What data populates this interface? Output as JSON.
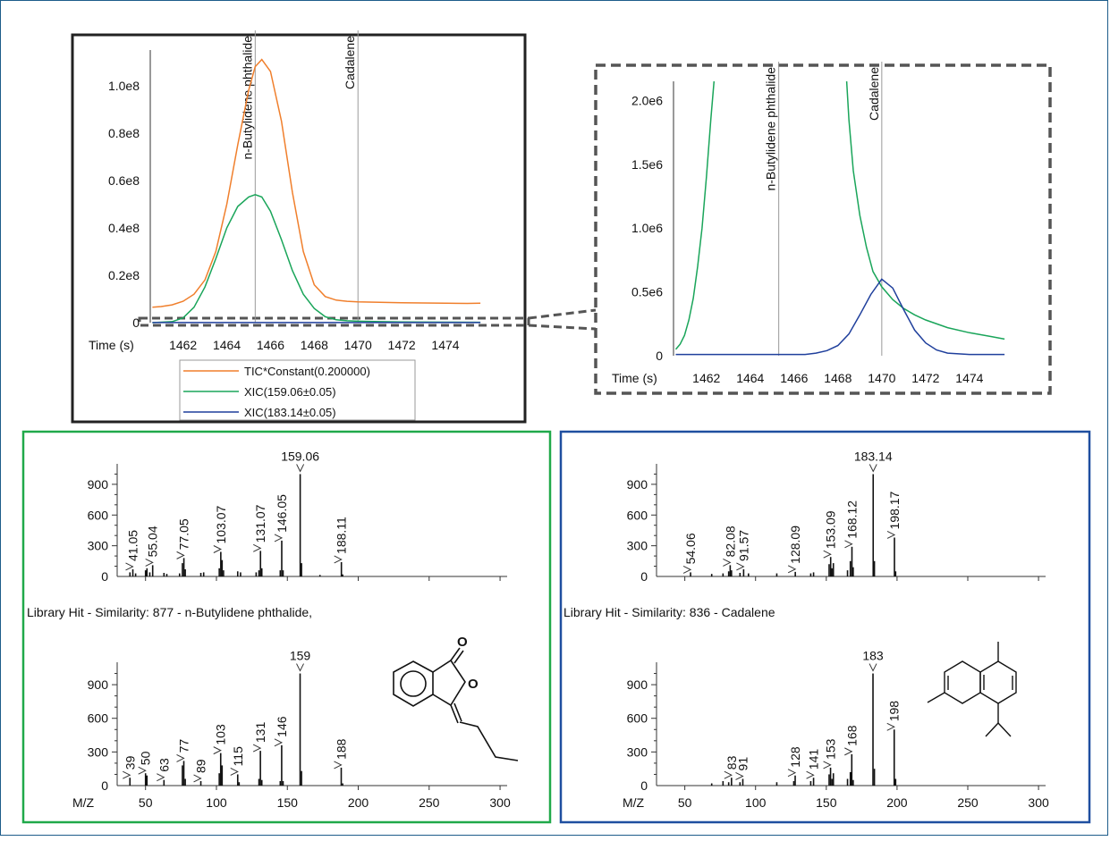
{
  "colors": {
    "tic": "#f07f2c",
    "xic159": "#1aa55a",
    "xic183": "#1f3f9c",
    "green_box": "#20a94a",
    "blue_box": "#1f4fa0",
    "frame": "#1d5c8a",
    "marker": "#9a9a9a"
  },
  "chart_data": [
    {
      "id": "chromatogram_full",
      "type": "line",
      "x_axis_label": "Time (s)",
      "xlim": [
        1460.5,
        1475.8
      ],
      "ylim": [
        0,
        115000000
      ],
      "x_ticks": [
        "1462",
        "1464",
        "1466",
        "1468",
        "1470",
        "1472",
        "1474"
      ],
      "y_ticks": [
        {
          "value": 0,
          "label": "0"
        },
        {
          "value": 20000000,
          "label": "0.2e8"
        },
        {
          "value": 40000000,
          "label": "0.4e8"
        },
        {
          "value": 60000000,
          "label": "0.6e8"
        },
        {
          "value": 80000000,
          "label": "0.8e8"
        },
        {
          "value": 100000000,
          "label": "1.0e8"
        }
      ],
      "markers": [
        {
          "x": 1465.3,
          "label": "n-Butylidene phthalide"
        },
        {
          "x": 1470.0,
          "label": "Cadalene"
        }
      ],
      "legend": [
        "TIC*Constant(0.200000)",
        "XIC(159.06±0.05)",
        "XIC(183.14±0.05)"
      ],
      "series": [
        {
          "name": "TIC*Constant(0.200000)",
          "color_key": "tic",
          "x": [
            1460.6,
            1461.0,
            1461.5,
            1462.0,
            1462.5,
            1463.0,
            1463.5,
            1464.0,
            1464.5,
            1465.0,
            1465.3,
            1465.6,
            1466.0,
            1466.5,
            1467.0,
            1467.5,
            1468.0,
            1468.5,
            1469.0,
            1469.5,
            1470.0,
            1471.0,
            1472.0,
            1473.0,
            1474.0,
            1475.0,
            1475.6
          ],
          "y": [
            6500000,
            6800000,
            7500000,
            9000000,
            12000000,
            18000000,
            30000000,
            50000000,
            75000000,
            98000000,
            108000000,
            111000000,
            106000000,
            85000000,
            55000000,
            30000000,
            16000000,
            11000000,
            9500000,
            9000000,
            8800000,
            8600000,
            8400000,
            8300000,
            8200000,
            8100000,
            8200000
          ]
        },
        {
          "name": "XIC(159.06±0.05)",
          "color_key": "xic159",
          "x": [
            1460.6,
            1461.5,
            1462.0,
            1462.5,
            1463.0,
            1463.5,
            1464.0,
            1464.5,
            1465.0,
            1465.3,
            1465.6,
            1466.0,
            1466.5,
            1467.0,
            1467.5,
            1468.0,
            1468.5,
            1469.0,
            1469.5,
            1470.0,
            1471.0,
            1472.0,
            1474.0,
            1475.6
          ],
          "y": [
            0,
            400000,
            2000000,
            6500000,
            15000000,
            27000000,
            40000000,
            49000000,
            53000000,
            54000000,
            53000000,
            47000000,
            35000000,
            22000000,
            12000000,
            6000000,
            2500000,
            1200000,
            800000,
            600000,
            400000,
            300000,
            200000,
            150000
          ]
        },
        {
          "name": "XIC(183.14±0.05)",
          "color_key": "xic183",
          "x": [
            1460.6,
            1475.6
          ],
          "y": [
            50000,
            50000
          ]
        }
      ]
    },
    {
      "id": "chromatogram_zoom",
      "type": "line",
      "x_axis_label": "Time (s)",
      "xlim": [
        1460.5,
        1475.8
      ],
      "ylim": [
        0,
        2150000
      ],
      "x_ticks": [
        "1462",
        "1464",
        "1466",
        "1468",
        "1470",
        "1472",
        "1474"
      ],
      "y_ticks": [
        {
          "value": 0,
          "label": "0"
        },
        {
          "value": 500000,
          "label": "0.5e6"
        },
        {
          "value": 1000000,
          "label": "1.0e6"
        },
        {
          "value": 1500000,
          "label": "1.5e6"
        },
        {
          "value": 2000000,
          "label": "2.0e6"
        }
      ],
      "markers": [
        {
          "x": 1465.3,
          "label": "n-Butylidene phthalide"
        },
        {
          "x": 1470.0,
          "label": "Cadalene"
        }
      ],
      "series": [
        {
          "name": "XIC(159.06±0.05)",
          "color_key": "xic159",
          "x": [
            1460.6,
            1460.8,
            1461.0,
            1461.2,
            1461.4,
            1461.6,
            1461.8,
            1462.0,
            1462.2,
            1462.35
          ],
          "y": [
            50000,
            90000,
            160000,
            280000,
            450000,
            700000,
            1000000,
            1400000,
            1850000,
            2150000
          ]
        },
        {
          "name": "XIC(159.06±0.05) tail",
          "color_key": "xic159",
          "x": [
            1468.4,
            1468.5,
            1468.7,
            1469.0,
            1469.3,
            1469.6,
            1470.0,
            1470.5,
            1471.0,
            1471.5,
            1472.0,
            1473.0,
            1474.0,
            1475.0,
            1475.6
          ],
          "y": [
            2150000,
            1850000,
            1450000,
            1100000,
            850000,
            660000,
            540000,
            440000,
            370000,
            320000,
            280000,
            220000,
            180000,
            150000,
            130000
          ]
        },
        {
          "name": "XIC(183.14±0.05)",
          "color_key": "xic183",
          "x": [
            1460.6,
            1466.5,
            1467.0,
            1467.5,
            1468.0,
            1468.5,
            1469.0,
            1469.5,
            1470.0,
            1470.5,
            1471.0,
            1471.5,
            1472.0,
            1472.5,
            1473.0,
            1474.0,
            1475.6
          ],
          "y": [
            10000,
            10000,
            20000,
            40000,
            80000,
            170000,
            320000,
            480000,
            600000,
            530000,
            360000,
            200000,
            100000,
            45000,
            20000,
            10000,
            10000
          ]
        }
      ]
    },
    {
      "id": "spectrum_green_measured",
      "type": "bar",
      "xlim": [
        30,
        305
      ],
      "ylim": [
        0,
        1100
      ],
      "y_ticks": [
        {
          "value": 0,
          "label": "0"
        },
        {
          "value": 300,
          "label": "300"
        },
        {
          "value": 600,
          "label": "600"
        },
        {
          "value": 900,
          "label": "900"
        }
      ],
      "peaks": [
        {
          "mz": 39,
          "i": 40
        },
        {
          "mz": 41.05,
          "i": 70
        },
        {
          "mz": 43,
          "i": 30
        },
        {
          "mz": 50,
          "i": 60
        },
        {
          "mz": 51,
          "i": 80
        },
        {
          "mz": 53,
          "i": 40
        },
        {
          "mz": 55.04,
          "i": 110
        },
        {
          "mz": 63,
          "i": 35
        },
        {
          "mz": 65,
          "i": 25
        },
        {
          "mz": 74,
          "i": 30
        },
        {
          "mz": 76,
          "i": 130
        },
        {
          "mz": 77.05,
          "i": 180
        },
        {
          "mz": 78,
          "i": 70
        },
        {
          "mz": 89,
          "i": 35
        },
        {
          "mz": 91,
          "i": 40
        },
        {
          "mz": 102,
          "i": 80
        },
        {
          "mz": 103.07,
          "i": 240
        },
        {
          "mz": 104,
          "i": 160
        },
        {
          "mz": 105,
          "i": 60
        },
        {
          "mz": 115,
          "i": 50
        },
        {
          "mz": 117,
          "i": 40
        },
        {
          "mz": 128,
          "i": 40
        },
        {
          "mz": 130,
          "i": 60
        },
        {
          "mz": 131.07,
          "i": 250
        },
        {
          "mz": 132,
          "i": 80
        },
        {
          "mz": 145,
          "i": 60
        },
        {
          "mz": 146.05,
          "i": 350
        },
        {
          "mz": 147,
          "i": 60
        },
        {
          "mz": 159.06,
          "i": 1000
        },
        {
          "mz": 160,
          "i": 130
        },
        {
          "mz": 173,
          "i": 15
        },
        {
          "mz": 188.11,
          "i": 140
        },
        {
          "mz": 189,
          "i": 20
        }
      ],
      "labels": [
        "41.05",
        "55.04",
        "77.05",
        "103.07",
        "131.07",
        "146.05",
        "159.06",
        "188.11"
      ]
    },
    {
      "id": "spectrum_green_library",
      "type": "bar",
      "caption": "Library Hit - Similarity: 877 - n-Butylidene phthalide,",
      "x_axis_label": "M/Z",
      "xlim": [
        30,
        305
      ],
      "ylim": [
        0,
        1100
      ],
      "x_ticks": [
        "50",
        "100",
        "150",
        "200",
        "250",
        "300"
      ],
      "y_ticks": [
        {
          "value": 0,
          "label": "0"
        },
        {
          "value": 300,
          "label": "300"
        },
        {
          "value": 600,
          "label": "600"
        },
        {
          "value": 900,
          "label": "900"
        }
      ],
      "peaks": [
        {
          "mz": 39,
          "i": 70
        },
        {
          "mz": 50,
          "i": 110
        },
        {
          "mz": 51,
          "i": 90
        },
        {
          "mz": 63,
          "i": 50
        },
        {
          "mz": 76,
          "i": 180
        },
        {
          "mz": 77,
          "i": 220
        },
        {
          "mz": 78,
          "i": 60
        },
        {
          "mz": 89,
          "i": 40
        },
        {
          "mz": 102,
          "i": 110
        },
        {
          "mz": 103,
          "i": 290
        },
        {
          "mz": 104,
          "i": 180
        },
        {
          "mz": 115,
          "i": 100
        },
        {
          "mz": 116,
          "i": 30
        },
        {
          "mz": 130,
          "i": 60
        },
        {
          "mz": 131,
          "i": 310
        },
        {
          "mz": 132,
          "i": 50
        },
        {
          "mz": 145,
          "i": 40
        },
        {
          "mz": 146,
          "i": 360
        },
        {
          "mz": 147,
          "i": 40
        },
        {
          "mz": 159,
          "i": 1000
        },
        {
          "mz": 160,
          "i": 130
        },
        {
          "mz": 188,
          "i": 160
        },
        {
          "mz": 189,
          "i": 20
        }
      ],
      "labels": [
        "39",
        "50",
        "63",
        "77",
        "89",
        "103",
        "115",
        "131",
        "146",
        "159",
        "188"
      ]
    },
    {
      "id": "spectrum_blue_measured",
      "type": "bar",
      "xlim": [
        30,
        305
      ],
      "ylim": [
        0,
        1100
      ],
      "y_ticks": [
        {
          "value": 0,
          "label": "0"
        },
        {
          "value": 300,
          "label": "300"
        },
        {
          "value": 600,
          "label": "600"
        },
        {
          "value": 900,
          "label": "900"
        }
      ],
      "peaks": [
        {
          "mz": 54.06,
          "i": 40
        },
        {
          "mz": 69,
          "i": 25
        },
        {
          "mz": 77,
          "i": 30
        },
        {
          "mz": 81,
          "i": 50
        },
        {
          "mz": 82.08,
          "i": 110
        },
        {
          "mz": 83,
          "i": 60
        },
        {
          "mz": 89,
          "i": 35
        },
        {
          "mz": 91.57,
          "i": 70
        },
        {
          "mz": 95,
          "i": 30
        },
        {
          "mz": 115,
          "i": 30
        },
        {
          "mz": 128.09,
          "i": 45
        },
        {
          "mz": 139,
          "i": 30
        },
        {
          "mz": 141,
          "i": 40
        },
        {
          "mz": 152,
          "i": 120
        },
        {
          "mz": 153.09,
          "i": 190
        },
        {
          "mz": 154,
          "i": 80
        },
        {
          "mz": 155,
          "i": 130
        },
        {
          "mz": 165,
          "i": 60
        },
        {
          "mz": 167,
          "i": 150
        },
        {
          "mz": 168.12,
          "i": 290
        },
        {
          "mz": 169,
          "i": 90
        },
        {
          "mz": 183.14,
          "i": 1000
        },
        {
          "mz": 184,
          "i": 150
        },
        {
          "mz": 198.17,
          "i": 380
        },
        {
          "mz": 199,
          "i": 50
        }
      ],
      "labels": [
        "54.06",
        "82.08",
        "91.57",
        "128.09",
        "153.09",
        "168.12",
        "183.14",
        "198.17"
      ]
    },
    {
      "id": "spectrum_blue_library",
      "type": "bar",
      "caption": "Library Hit - Similarity: 836 -  Cadalene",
      "x_axis_label": "M/Z",
      "xlim": [
        30,
        305
      ],
      "ylim": [
        0,
        1100
      ],
      "x_ticks": [
        "50",
        "100",
        "150",
        "200",
        "250",
        "300"
      ],
      "y_ticks": [
        {
          "value": 0,
          "label": "0"
        },
        {
          "value": 300,
          "label": "300"
        },
        {
          "value": 600,
          "label": "600"
        },
        {
          "value": 900,
          "label": "900"
        }
      ],
      "peaks": [
        {
          "mz": 69,
          "i": 20
        },
        {
          "mz": 77,
          "i": 40
        },
        {
          "mz": 81,
          "i": 30
        },
        {
          "mz": 83,
          "i": 70
        },
        {
          "mz": 89,
          "i": 30
        },
        {
          "mz": 91,
          "i": 60
        },
        {
          "mz": 115,
          "i": 30
        },
        {
          "mz": 127,
          "i": 40
        },
        {
          "mz": 128,
          "i": 90
        },
        {
          "mz": 139,
          "i": 40
        },
        {
          "mz": 141,
          "i": 70
        },
        {
          "mz": 152,
          "i": 100
        },
        {
          "mz": 153,
          "i": 160
        },
        {
          "mz": 154,
          "i": 60
        },
        {
          "mz": 155,
          "i": 110
        },
        {
          "mz": 165,
          "i": 60
        },
        {
          "mz": 167,
          "i": 120
        },
        {
          "mz": 168,
          "i": 280
        },
        {
          "mz": 169,
          "i": 50
        },
        {
          "mz": 183,
          "i": 1000
        },
        {
          "mz": 184,
          "i": 150
        },
        {
          "mz": 198,
          "i": 500
        },
        {
          "mz": 199,
          "i": 60
        }
      ],
      "labels": [
        "83",
        "91",
        "128",
        "141",
        "153",
        "168",
        "183",
        "198"
      ]
    }
  ],
  "molecules": {
    "phthalide_atoms": [
      "O",
      "O"
    ]
  }
}
